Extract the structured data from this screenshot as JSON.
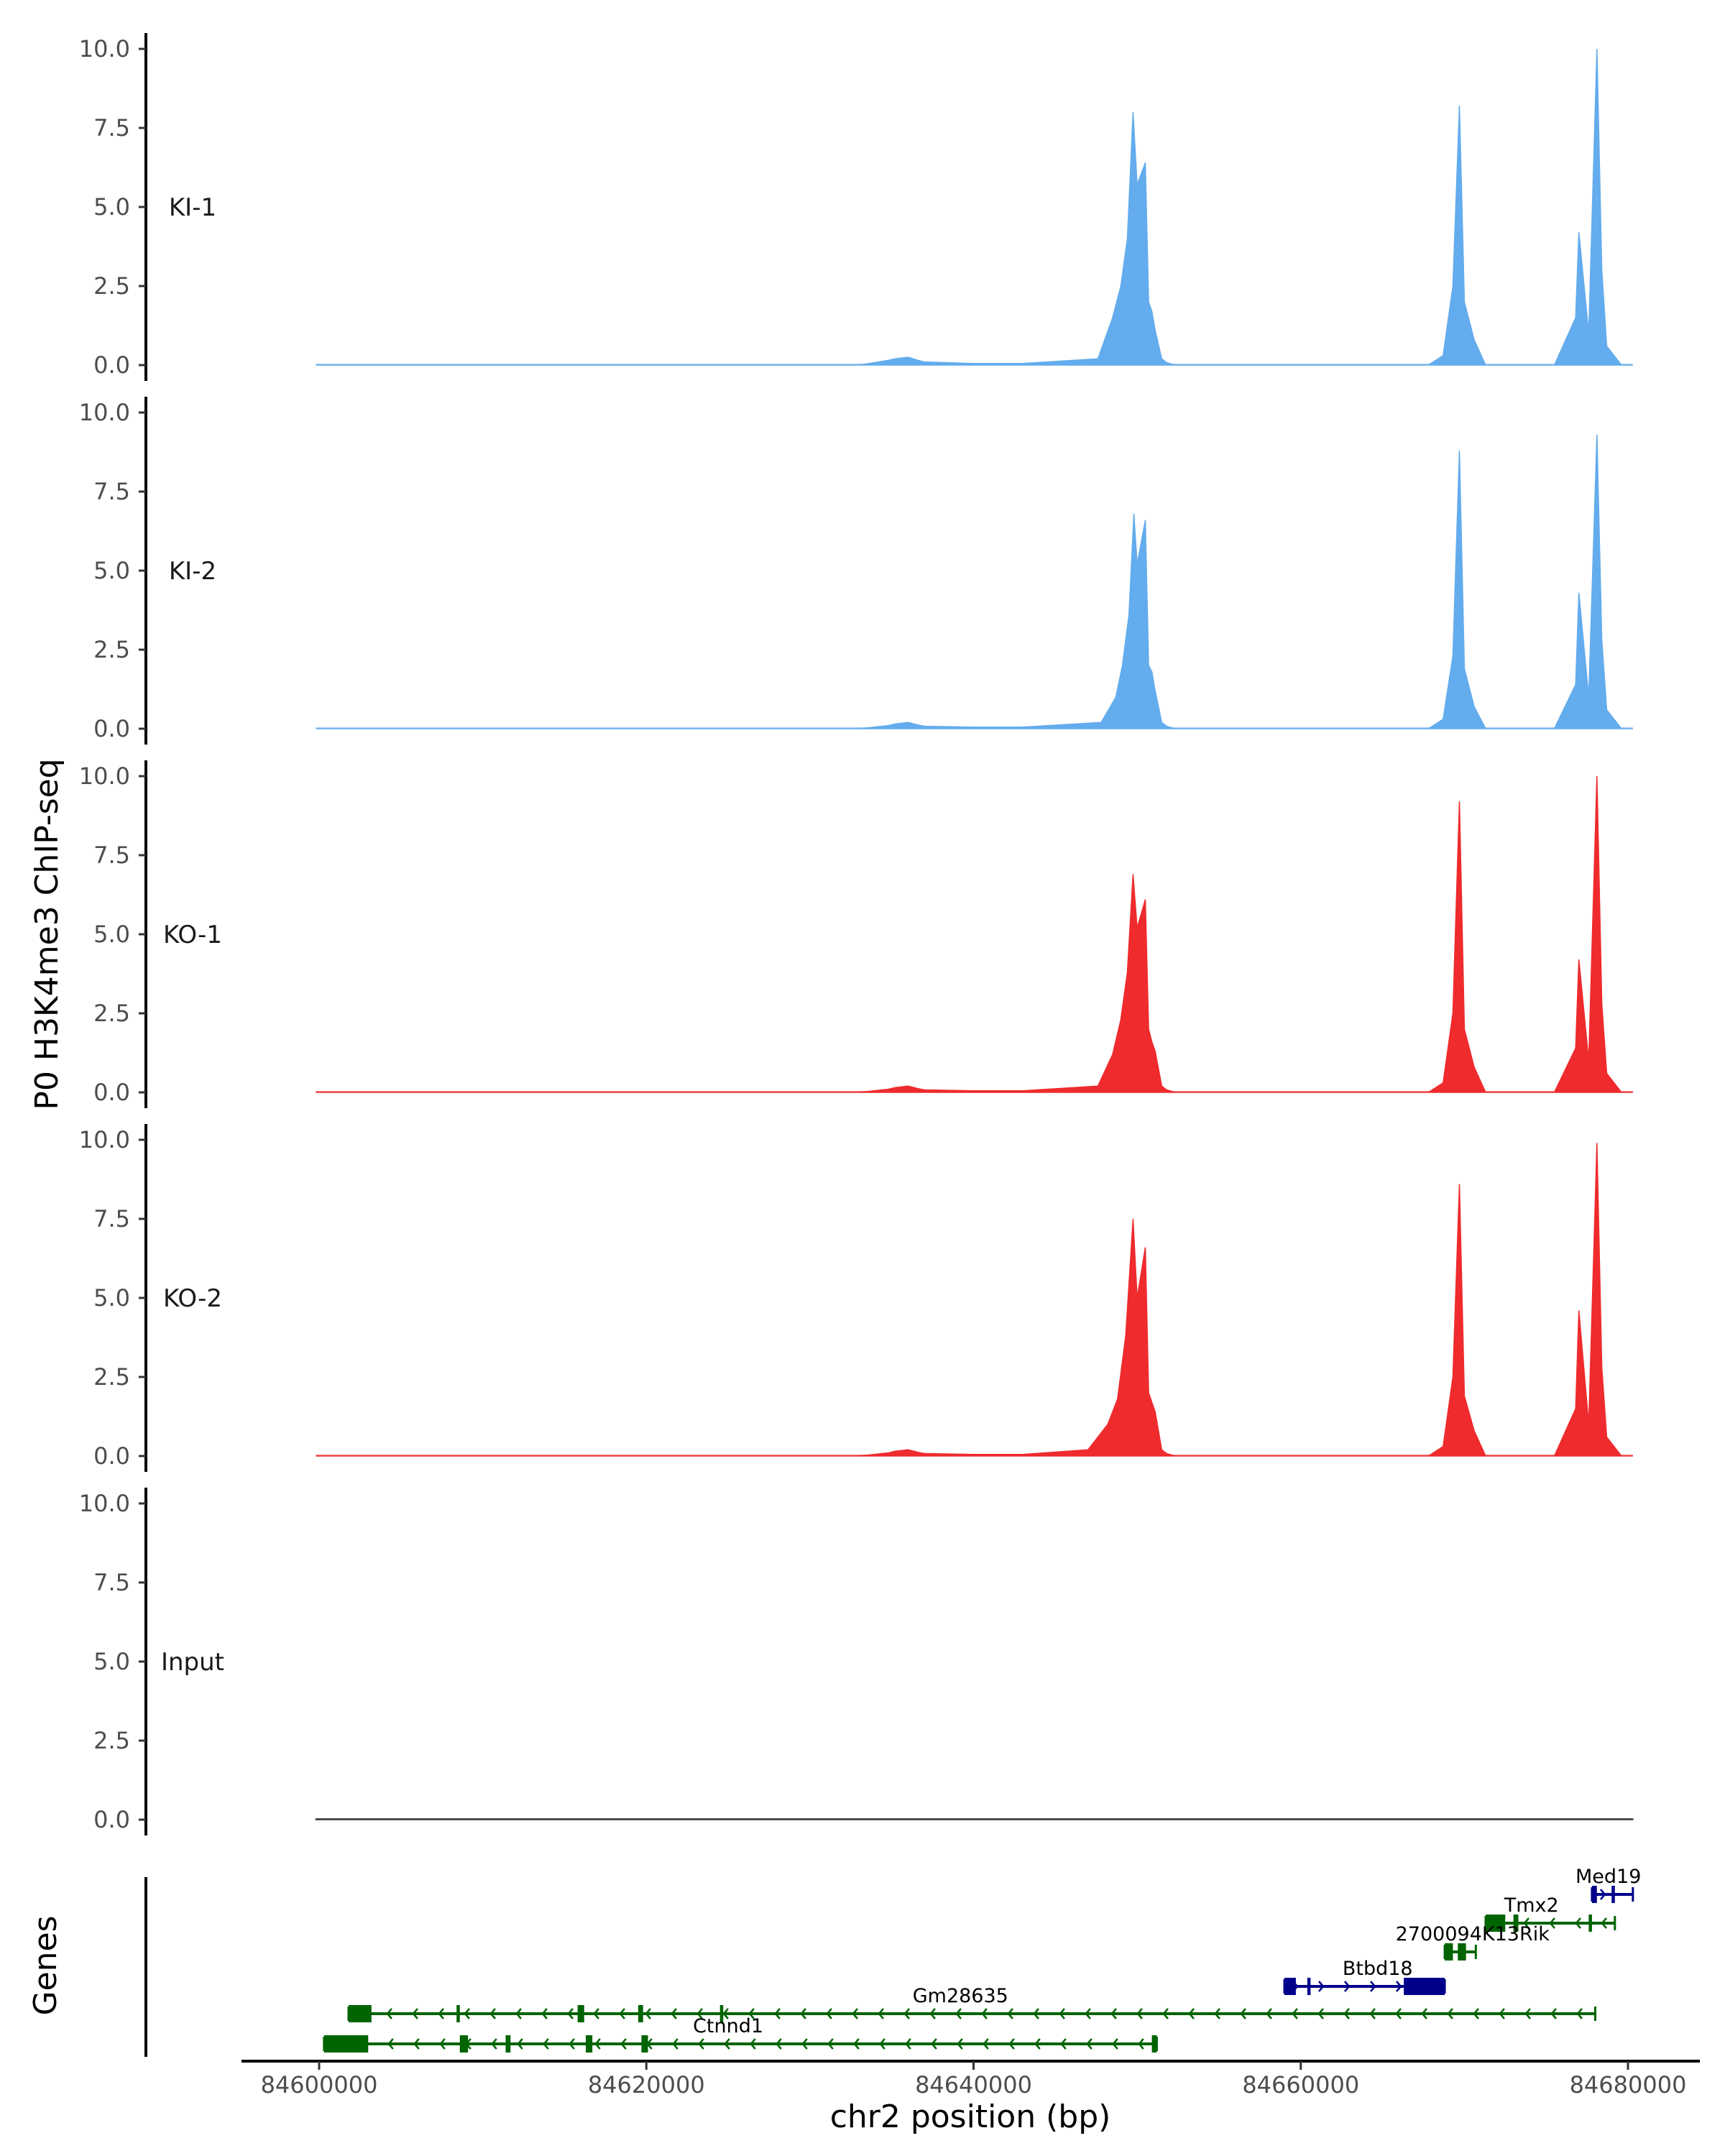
{
  "chart_data": {
    "type": "area",
    "title": "",
    "ylabel": "P0 H3K4me3 ChIP-seq",
    "xlabel": "chr2 position (bp)",
    "xlim": [
      84595000,
      84681000
    ],
    "ylim": [
      0,
      10
    ],
    "x_ticks": [
      84600000,
      84620000,
      84640000,
      84660000,
      84680000
    ],
    "x_tick_labels": [
      "84600000",
      "84620000",
      "84640000",
      "84660000",
      "84680000"
    ],
    "y_ticks": [
      0,
      2.5,
      5,
      7.5,
      10
    ],
    "y_tick_labels": [
      "0.0",
      "2.5",
      "5.0",
      "7.5",
      "10.0"
    ],
    "colors": {
      "KI": "#63aced",
      "KO": "#ef2b2d",
      "Input": "#333333",
      "gene_minus": "#006400",
      "gene_plus": "#00008b"
    },
    "tracks": [
      {
        "name": "KI-1",
        "color": "#63aced",
        "x": [
          84599800,
          84633000,
          84634800,
          84635200,
          84636000,
          84636600,
          84637000,
          84640000,
          84643000,
          84647600,
          84648500,
          84649000,
          84649400,
          84649750,
          84650000,
          84650500,
          84650700,
          84650900,
          84651100,
          84651500,
          84651800,
          84652300,
          84667800,
          84668700,
          84669300,
          84669700,
          84670000,
          84670600,
          84671300,
          84675500,
          84676800,
          84677000,
          84677600,
          84678100,
          84678400,
          84678700,
          84679600,
          84680300
        ],
        "y": [
          0,
          0,
          0.15,
          0.2,
          0.25,
          0.15,
          0.1,
          0.05,
          0.05,
          0.2,
          1.5,
          2.5,
          4.0,
          8.0,
          5.7,
          6.4,
          2.0,
          1.7,
          1.1,
          0.2,
          0.08,
          0,
          0,
          0.3,
          2.5,
          8.2,
          2.0,
          0.8,
          0,
          0,
          1.5,
          4.2,
          1.0,
          10.0,
          3.0,
          0.6,
          0,
          0
        ]
      },
      {
        "name": "KI-2",
        "color": "#63aced",
        "x": [
          84599800,
          84633000,
          84634800,
          84635200,
          84636000,
          84636600,
          84637000,
          84640000,
          84643000,
          84647800,
          84648700,
          84649100,
          84649500,
          84649800,
          84650000,
          84650500,
          84650700,
          84650900,
          84651100,
          84651500,
          84651800,
          84652300,
          84667800,
          84668700,
          84669300,
          84669700,
          84670000,
          84670600,
          84671300,
          84675500,
          84676800,
          84677000,
          84677600,
          84678100,
          84678400,
          84678700,
          84679600,
          84680300
        ],
        "y": [
          0,
          0,
          0.1,
          0.15,
          0.2,
          0.12,
          0.08,
          0.05,
          0.05,
          0.2,
          1.0,
          2.0,
          3.6,
          6.8,
          5.2,
          6.6,
          2.0,
          1.8,
          1.2,
          0.2,
          0.08,
          0,
          0,
          0.3,
          2.3,
          8.8,
          1.9,
          0.7,
          0,
          0,
          1.4,
          4.3,
          1.0,
          9.3,
          2.8,
          0.6,
          0,
          0
        ]
      },
      {
        "name": "KO-1",
        "color": "#ef2b2d",
        "x": [
          84599800,
          84633000,
          84634800,
          84635200,
          84636000,
          84636600,
          84637000,
          84640000,
          84643000,
          84647600,
          84648500,
          84649000,
          84649400,
          84649750,
          84650000,
          84650500,
          84650700,
          84650900,
          84651100,
          84651500,
          84651800,
          84652300,
          84667800,
          84668700,
          84669300,
          84669700,
          84670000,
          84670600,
          84671300,
          84675500,
          84676800,
          84677000,
          84677600,
          84678100,
          84678400,
          84678700,
          84679600,
          84680300
        ],
        "y": [
          0,
          0,
          0.1,
          0.15,
          0.2,
          0.12,
          0.08,
          0.05,
          0.05,
          0.2,
          1.2,
          2.3,
          3.8,
          6.9,
          5.2,
          6.1,
          2.0,
          1.6,
          1.3,
          0.2,
          0.08,
          0,
          0,
          0.3,
          2.5,
          9.2,
          2.0,
          0.8,
          0,
          0,
          1.4,
          4.2,
          1.0,
          10.0,
          2.8,
          0.6,
          0,
          0
        ]
      },
      {
        "name": "KO-2",
        "color": "#ef2b2d",
        "x": [
          84599800,
          84633000,
          84634800,
          84635200,
          84636000,
          84636600,
          84637000,
          84640000,
          84643000,
          84647000,
          84648200,
          84648800,
          84649300,
          84649750,
          84650000,
          84650500,
          84650700,
          84650900,
          84651100,
          84651500,
          84651800,
          84652300,
          84667800,
          84668700,
          84669300,
          84669700,
          84670000,
          84670600,
          84671300,
          84675500,
          84676800,
          84677000,
          84677600,
          84678100,
          84678400,
          84678700,
          84679600,
          84680300
        ],
        "y": [
          0,
          0,
          0.1,
          0.15,
          0.2,
          0.12,
          0.08,
          0.05,
          0.05,
          0.2,
          1.0,
          1.8,
          3.8,
          7.5,
          5.0,
          6.6,
          2.0,
          1.7,
          1.4,
          0.2,
          0.08,
          0,
          0,
          0.3,
          2.5,
          8.6,
          1.9,
          0.8,
          0,
          0,
          1.5,
          4.6,
          1.0,
          9.9,
          2.8,
          0.6,
          0,
          0
        ]
      },
      {
        "name": "Input",
        "color": "#333333",
        "x": [
          84599800,
          84680300
        ],
        "y": [
          0.02,
          0.02
        ]
      }
    ],
    "genes": {
      "label": "Genes",
      "rows": [
        {
          "name": "Med19",
          "strand": "+",
          "color": "#00008b",
          "start": 84677800,
          "end": 84680300,
          "exons": [
            [
              84677800,
              84678100
            ],
            [
              84679000,
              84679200
            ]
          ],
          "label_pos": 84678800
        },
        {
          "name": "Tmx2",
          "strand": "-",
          "color": "#006400",
          "start": 84671300,
          "end": 84679200,
          "exons": [
            [
              84671300,
              84672500
            ],
            [
              84673000,
              84673300
            ],
            [
              84677600,
              84677800
            ]
          ],
          "label_pos": 84674100
        },
        {
          "name": "2700094K13Rik",
          "strand": "-",
          "color": "#006400",
          "start": 84668800,
          "end": 84670700,
          "exons": [
            [
              84668800,
              84669300
            ],
            [
              84669600,
              84670100
            ]
          ],
          "label_pos": 84670500
        },
        {
          "name": "Btbd18",
          "strand": "+",
          "color": "#00008b",
          "start": 84659000,
          "end": 84668800,
          "exons": [
            [
              84659000,
              84659700
            ],
            [
              84660400,
              84660600
            ],
            [
              84666300,
              84668800
            ]
          ],
          "label_pos": 84664700
        },
        {
          "name": "Gm28635",
          "strand": "-",
          "color": "#006400",
          "start": 84601800,
          "end": 84678000,
          "exons": [
            [
              84601800,
              84603200
            ],
            [
              84608400,
              84608600
            ],
            [
              84615800,
              84616200
            ],
            [
              84619500,
              84619800
            ],
            [
              84624500,
              84624700
            ]
          ],
          "label_pos": 84639200
        },
        {
          "name": "Ctnnd1",
          "strand": "-",
          "color": "#006400",
          "start": 84600300,
          "end": 84651200,
          "exons": [
            [
              84600300,
              84603000
            ],
            [
              84608600,
              84609100
            ],
            [
              84611400,
              84611700
            ],
            [
              84616300,
              84616700
            ],
            [
              84619700,
              84620100
            ],
            [
              84650900,
              84651200
            ]
          ],
          "label_pos": 84625000
        }
      ]
    }
  }
}
